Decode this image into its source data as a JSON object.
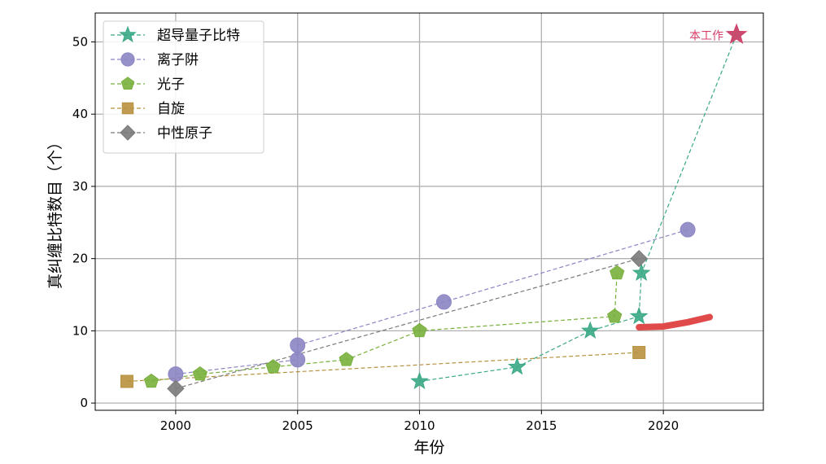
{
  "chart_data": {
    "type": "line",
    "title": "",
    "xlabel": "年份",
    "ylabel": "真纠缠比特数目（个）",
    "xlim": [
      1996.7,
      2024.1
    ],
    "ylim": [
      -1,
      54
    ],
    "xticks": [
      2000,
      2005,
      2010,
      2015,
      2020
    ],
    "yticks": [
      0,
      10,
      20,
      30,
      40,
      50
    ],
    "grid": true,
    "legend_position": "top-left",
    "series": [
      {
        "name": "超导量子比特",
        "marker": "star",
        "color": "#3aa886",
        "points": [
          [
            2010,
            3
          ],
          [
            2014,
            5
          ],
          [
            2017,
            10
          ],
          [
            2019,
            12
          ],
          [
            2019.1,
            18
          ],
          [
            2023,
            51
          ]
        ]
      },
      {
        "name": "离子阱",
        "marker": "circle",
        "color": "#8c85c4",
        "points": [
          [
            2000,
            4
          ],
          [
            2005,
            6
          ],
          [
            2005,
            8
          ],
          [
            2011,
            14
          ],
          [
            2021,
            24
          ]
        ]
      },
      {
        "name": "光子",
        "marker": "pentagon",
        "color": "#79b03d",
        "points": [
          [
            1999,
            3
          ],
          [
            2001,
            4
          ],
          [
            2004,
            5
          ],
          [
            2007,
            6
          ],
          [
            2010,
            10
          ],
          [
            2018,
            12
          ],
          [
            2018.1,
            18
          ]
        ]
      },
      {
        "name": "自旋",
        "marker": "square",
        "color": "#b8913f",
        "points": [
          [
            1998,
            3
          ],
          [
            2019,
            7
          ]
        ]
      },
      {
        "name": "中性原子",
        "marker": "diamond",
        "color": "#7a7a7a",
        "points": [
          [
            2000,
            2
          ],
          [
            2019,
            20
          ]
        ]
      }
    ],
    "highlight": {
      "label": "本工作",
      "x": 2023,
      "y": 51,
      "marker": "star",
      "color": "#d6416a"
    },
    "trend_stroke": {
      "color": "#e04a4a",
      "points": [
        [
          2019,
          10.5
        ],
        [
          2020,
          10.6
        ],
        [
          2021,
          11.2
        ],
        [
          2021.9,
          11.9
        ]
      ]
    }
  }
}
